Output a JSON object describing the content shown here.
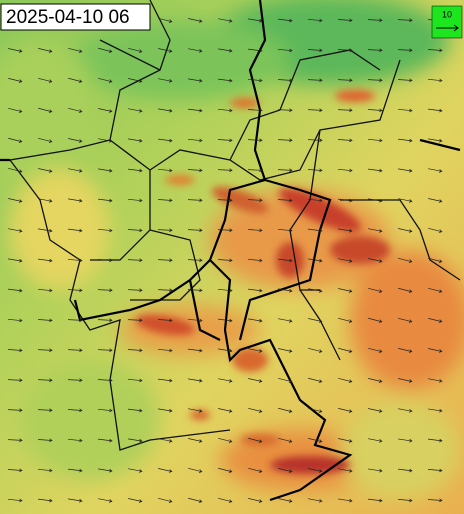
{
  "header": {
    "timestamp": "2025-04-10 06"
  },
  "legend": {
    "label": "10"
  }
}
